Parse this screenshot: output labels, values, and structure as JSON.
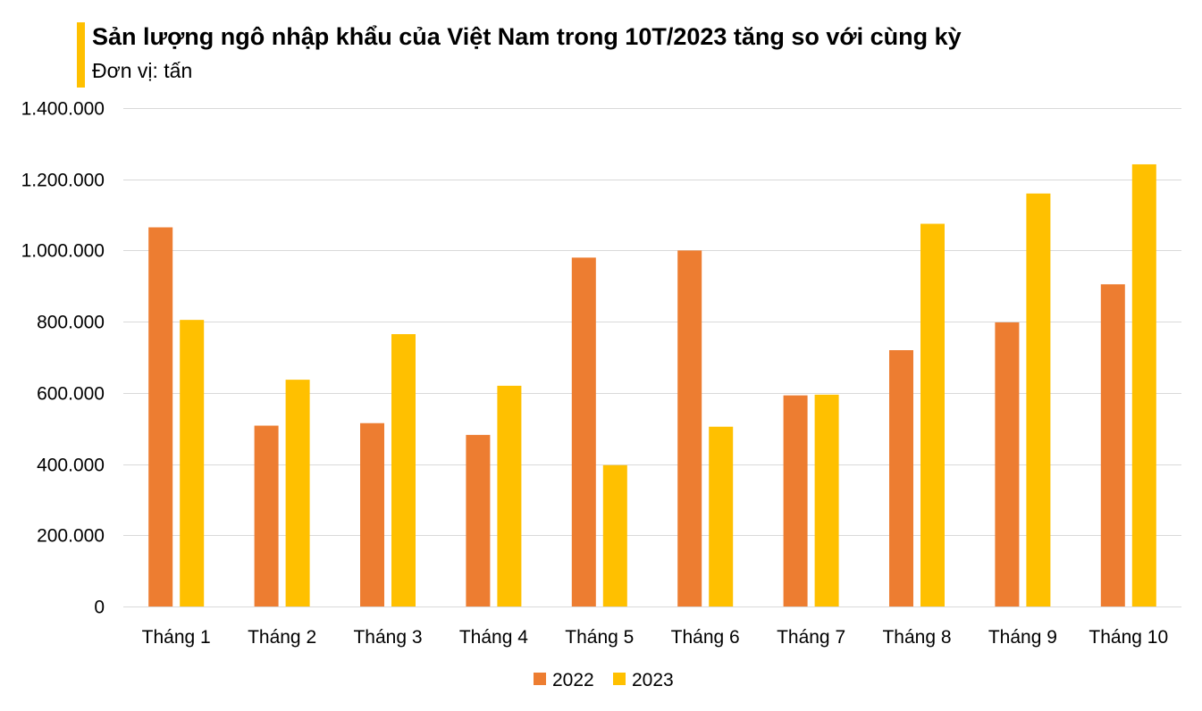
{
  "header": {
    "title": "Sản lượng ngô nhập khẩu của Việt Nam trong 10T/2023 tăng so với cùng kỳ",
    "subtitle": "Đơn vị: tấn",
    "accent_color": "#FFC000"
  },
  "chart_data": {
    "type": "bar",
    "categories": [
      "Tháng 1",
      "Tháng 2",
      "Tháng 3",
      "Tháng 4",
      "Tháng 5",
      "Tháng 6",
      "Tháng 7",
      "Tháng 8",
      "Tháng 9",
      "Tháng 10"
    ],
    "series": [
      {
        "name": "2022",
        "color": "#ED7D31",
        "values": [
          1065000,
          508000,
          515000,
          482000,
          980000,
          1000000,
          593000,
          720000,
          798000,
          905000
        ]
      },
      {
        "name": "2023",
        "color": "#FFC000",
        "values": [
          805000,
          637000,
          765000,
          620000,
          397000,
          505000,
          595000,
          1075000,
          1160000,
          1242000
        ]
      }
    ],
    "ylim": [
      0,
      1400000
    ],
    "yticks": [
      0,
      200000,
      400000,
      600000,
      800000,
      1000000,
      1200000,
      1400000
    ],
    "ytick_labels": [
      "0",
      "200.000",
      "400.000",
      "600.000",
      "800.000",
      "1.000.000",
      "1.200.000",
      "1.400.000"
    ],
    "grid": true,
    "grid_color": "#D9D9D9",
    "legend_position": "bottom"
  }
}
